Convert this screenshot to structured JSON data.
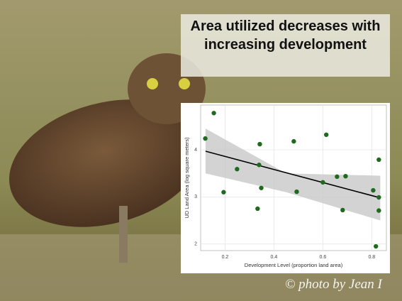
{
  "chart_data": {
    "type": "scatter",
    "title": "Area utilized decreases with increasing development",
    "xlabel": "Development Level (proportion land area)",
    "ylabel": "UD Land Area (log square meters)",
    "annotation": "© photo by Jean I",
    "x": [
      0.119,
      0.154,
      0.194,
      0.249,
      0.342,
      0.339,
      0.348,
      0.333,
      0.481,
      0.493,
      0.614,
      0.6,
      0.658,
      0.693,
      0.681,
      0.806,
      0.829,
      0.829,
      0.829,
      0.817
    ],
    "values": [
      4.24,
      4.78,
      3.1,
      3.59,
      4.12,
      3.68,
      3.19,
      2.75,
      4.18,
      3.11,
      4.32,
      3.31,
      3.43,
      3.44,
      2.72,
      3.14,
      3.79,
      2.99,
      2.71,
      1.95
    ],
    "color": "#1e6b1e",
    "fit": {
      "x": [
        0.12,
        0.835
      ],
      "y": [
        3.97,
        2.98
      ],
      "color": "#000000"
    },
    "band": {
      "x": [
        0.12,
        0.45,
        0.835
      ],
      "upper": [
        4.45,
        3.5,
        3.45
      ],
      "lower": [
        3.5,
        3.1,
        2.5
      ],
      "color": "#c8c8c8"
    },
    "xlim": [
      0.1,
      0.86
    ],
    "ylim": [
      1.86,
      4.95
    ],
    "xticks": [
      0.2,
      0.4,
      0.6,
      0.8
    ],
    "yticks": [
      2,
      3,
      4
    ],
    "grid": true
  }
}
